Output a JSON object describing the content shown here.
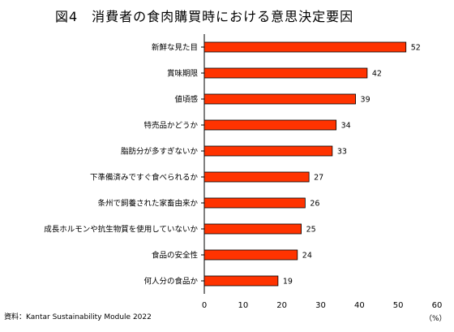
{
  "chart_data": {
    "type": "bar",
    "orientation": "horizontal",
    "title": "図4　消費者の食肉購買時における意思決定要因",
    "categories": [
      "新鮮な見た目",
      "賞味期限",
      "値頃感",
      "特売品かどうか",
      "脂肪分が多すぎないか",
      "下準備済みですぐ食べられるか",
      "条州で飼養された家畜由来か",
      "成長ホルモンや抗生物質を使用していないか",
      "食品の安全性",
      "何人分の食品か"
    ],
    "values": [
      52,
      42,
      39,
      34,
      33,
      27,
      26,
      25,
      24,
      19
    ],
    "xlim": [
      0,
      60
    ],
    "xticks": [
      0,
      10,
      20,
      30,
      40,
      50,
      60
    ],
    "unit": "（%）",
    "source": "資料：Kantar Sustainability Module 2022",
    "bar_color": "#ff3300",
    "bar_border_color": "#000000",
    "grid": false
  }
}
